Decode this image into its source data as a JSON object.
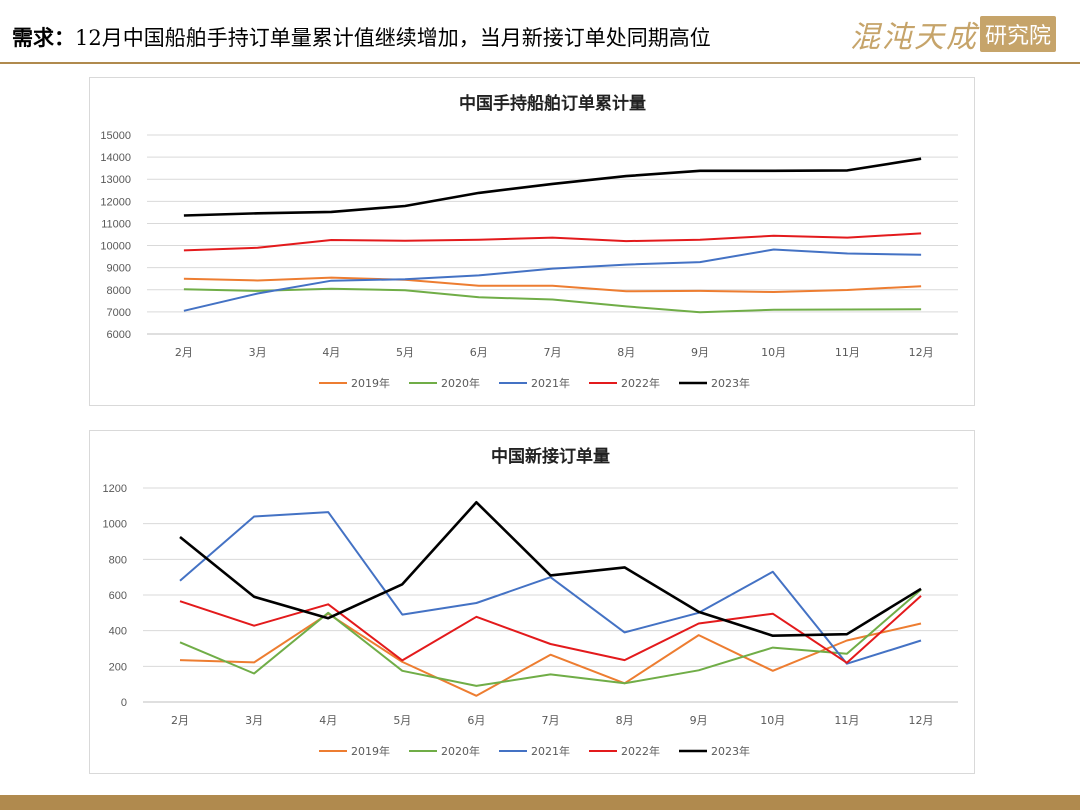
{
  "header": {
    "lead": "需求：",
    "title": "12月中国船舶手持订单量累计值继续增加，当月新接订单处同期高位",
    "brand_main": "混沌天成",
    "brand_box": "研究院"
  },
  "colors": {
    "2019年": "#ed7d31",
    "2020年": "#70ad47",
    "2021年": "#4472c4",
    "2022年": "#e31a1c",
    "2023年": "#000000",
    "accent": "#b08a4e"
  },
  "chart_data": [
    {
      "type": "line",
      "title": "中国手持船舶订单累计量",
      "categories": [
        "2月",
        "3月",
        "4月",
        "5月",
        "6月",
        "7月",
        "8月",
        "9月",
        "10月",
        "11月",
        "12月"
      ],
      "ylim": [
        6000,
        15000
      ],
      "yticks": [
        6000,
        7000,
        8000,
        9000,
        10000,
        11000,
        12000,
        13000,
        14000,
        15000
      ],
      "grid": true,
      "legend": "bottom",
      "series": [
        {
          "name": "2019年",
          "values": [
            8500,
            8420,
            8550,
            8450,
            8180,
            8180,
            7930,
            7950,
            7900,
            7990,
            8160
          ]
        },
        {
          "name": "2020年",
          "values": [
            8020,
            7950,
            8050,
            7980,
            7660,
            7560,
            7250,
            6980,
            7100,
            7110,
            7120
          ]
        },
        {
          "name": "2021年",
          "values": [
            7050,
            7830,
            8410,
            8480,
            8650,
            8960,
            9140,
            9250,
            9820,
            9640,
            9580
          ]
        },
        {
          "name": "2022年",
          "values": [
            9780,
            9900,
            10250,
            10220,
            10260,
            10360,
            10200,
            10260,
            10440,
            10360,
            10550
          ]
        },
        {
          "name": "2023年",
          "values": [
            11360,
            11460,
            11520,
            11790,
            12380,
            12790,
            13140,
            13380,
            13380,
            13400,
            13930
          ]
        }
      ]
    },
    {
      "type": "line",
      "title": "中国新接订单量",
      "categories": [
        "2月",
        "3月",
        "4月",
        "5月",
        "6月",
        "7月",
        "8月",
        "9月",
        "10月",
        "11月",
        "12月"
      ],
      "ylim": [
        0,
        1200
      ],
      "yticks": [
        0,
        200,
        400,
        600,
        800,
        1000,
        1200
      ],
      "grid": true,
      "legend": "bottom",
      "series": [
        {
          "name": "2019年",
          "values": [
            235,
            222,
            495,
            225,
            35,
            265,
            105,
            375,
            175,
            345,
            440
          ]
        },
        {
          "name": "2020年",
          "values": [
            335,
            160,
            500,
            175,
            90,
            155,
            105,
            178,
            305,
            270,
            630
          ]
        },
        {
          "name": "2021年",
          "values": [
            680,
            1040,
            1065,
            490,
            555,
            700,
            390,
            500,
            730,
            215,
            345
          ]
        },
        {
          "name": "2022年",
          "values": [
            565,
            428,
            548,
            233,
            478,
            325,
            235,
            440,
            495,
            220,
            595
          ]
        },
        {
          "name": "2023年",
          "values": [
            925,
            590,
            470,
            660,
            1120,
            710,
            755,
            505,
            372,
            380,
            635
          ]
        }
      ]
    }
  ]
}
